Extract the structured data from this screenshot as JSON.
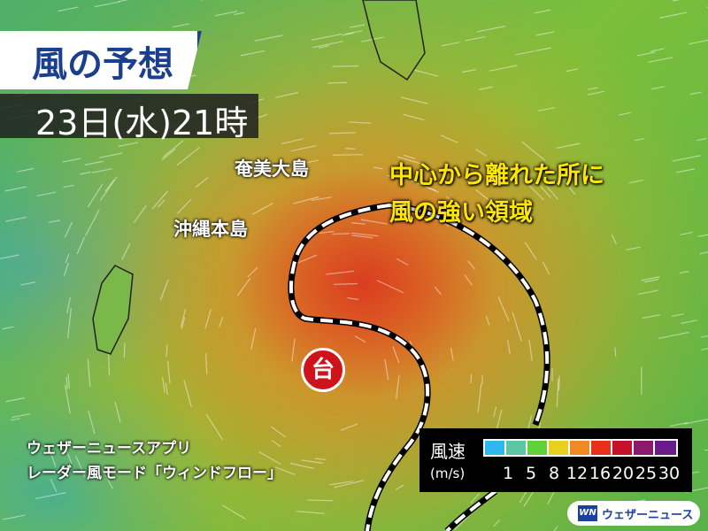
{
  "title": "風の予想",
  "datetime": "23日(水)21時",
  "places": {
    "amami": "奄美大島",
    "okinawa": "沖縄本島"
  },
  "callout": {
    "line1": "中心から離れた所に",
    "line2": "風の強い領域"
  },
  "typhoon_symbol": "台",
  "note": {
    "line1": "ウェザーニュースアプリ",
    "line2": "レーダー風モード「ウィンドフロー」"
  },
  "legend": {
    "label": "風速",
    "unit": "(m/s)",
    "ticks": [
      "1",
      "5",
      "8",
      "12",
      "16",
      "20",
      "25",
      "30"
    ],
    "colors": [
      "#2fb8f0",
      "#5cc6a0",
      "#5fd23a",
      "#e8d020",
      "#f08a20",
      "#e8301a",
      "#c8102a",
      "#8a1a70",
      "#6a1a8a"
    ]
  },
  "brand": {
    "logo": "WN",
    "name": "ウェザーニュース"
  }
}
